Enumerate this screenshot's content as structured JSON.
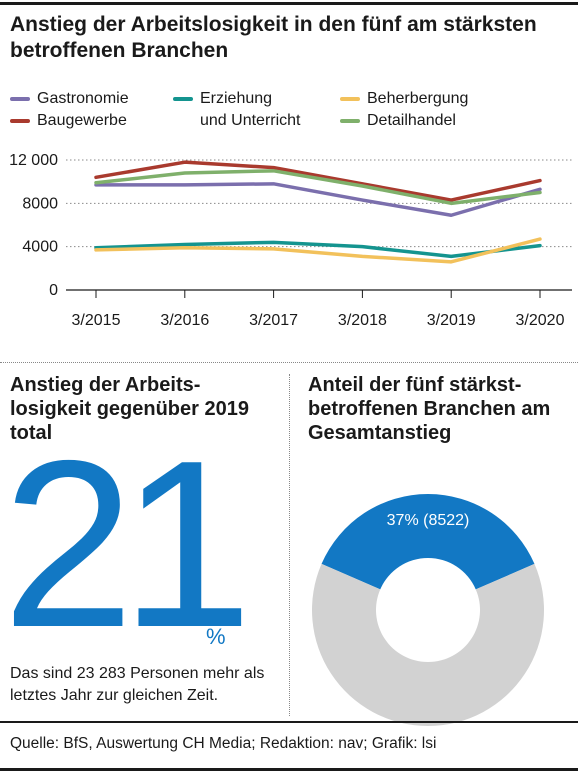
{
  "title": "Anstieg der Arbeitslosigkeit in den fünf am stärksten betroffenen Branchen",
  "legend": {
    "gastro": "Gastronomie",
    "bau": "Baugewerbe",
    "erz1": "Erziehung",
    "erz2": "und Unterricht",
    "beh": "Beherbergung",
    "det": "Detailhandel"
  },
  "section_left": {
    "heading": "Anstieg  der Arbeits-losigkeit gegenüber 2019 total",
    "big_number": "21",
    "unit": "%",
    "note": "Das sind 23 283 Personen mehr als letztes Jahr zur gleichen Zeit."
  },
  "section_right": {
    "heading": "Anteil der fünf stärkst-betroffenen Branchen am Gesamtanstieg"
  },
  "source": "Quelle: BfS, Auswertung CH Media; Redaktion: nav; Grafik: lsi",
  "colors": {
    "gastro": "#7b6fad",
    "bau": "#a93a2e",
    "erz": "#14948f",
    "beh": "#f2c15b",
    "det": "#7fb06b",
    "accent": "#1278c4",
    "rest": "#d2d2d2"
  },
  "chart_data": [
    {
      "type": "line",
      "x": [
        "3/2015",
        "3/2016",
        "3/2017",
        "3/2018",
        "3/2019",
        "3/2020"
      ],
      "ylim": [
        0,
        12000
      ],
      "yticks": [
        "12 000",
        "8000",
        "4000",
        "0"
      ],
      "ytick_values": [
        12000,
        8000,
        4000,
        0
      ],
      "grid": true,
      "series": [
        {
          "name": "Gastronomie",
          "color": "#7b6fad",
          "values": [
            9700,
            9700,
            9800,
            8300,
            6900,
            9300
          ]
        },
        {
          "name": "Baugewerbe",
          "color": "#a93a2e",
          "values": [
            10400,
            11800,
            11300,
            9800,
            8300,
            10100
          ]
        },
        {
          "name": "Erziehung und Unterricht",
          "color": "#14948f",
          "values": [
            3900,
            4200,
            4400,
            4000,
            3100,
            4100
          ]
        },
        {
          "name": "Beherbergung",
          "color": "#f2c15b",
          "values": [
            3700,
            3900,
            3800,
            3100,
            2600,
            4700
          ]
        },
        {
          "name": "Detailhandel",
          "color": "#7fb06b",
          "values": [
            9900,
            10800,
            11000,
            9600,
            8000,
            9000
          ]
        }
      ]
    },
    {
      "type": "pie",
      "slices": [
        {
          "value": 37,
          "label": "37% (8522)",
          "color": "#1278c4"
        },
        {
          "value": 63,
          "label": "",
          "color": "#d2d2d2"
        }
      ]
    }
  ]
}
